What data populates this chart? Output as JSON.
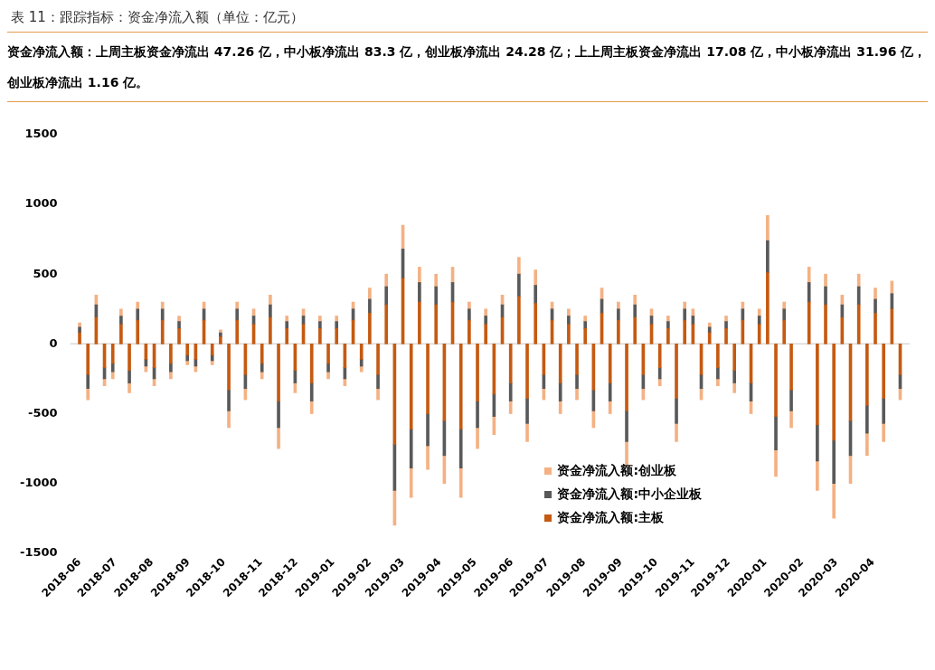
{
  "chart_data": {
    "type": "bar",
    "stacked": true,
    "title": "表 11：跟踪指标：资金净流入额（单位：亿元）",
    "subtitle": "资金净流入额：上周主板资金净流出 47.26 亿，中小板净流出 83.3 亿，创业板净流出 24.28 亿；上上周主板资金净流出 17.08 亿，中小板净流出 31.96 亿，创业板净流出 1.16 亿。",
    "x": [
      "2018-06-01",
      "2018-06-08",
      "2018-06-15",
      "2018-06-22",
      "2018-06-29",
      "2018-07-06",
      "2018-07-13",
      "2018-07-20",
      "2018-07-27",
      "2018-08-03",
      "2018-08-10",
      "2018-08-17",
      "2018-08-24",
      "2018-08-31",
      "2018-09-07",
      "2018-09-14",
      "2018-09-21",
      "2018-09-28",
      "2018-10-05",
      "2018-10-12",
      "2018-10-19",
      "2018-10-26",
      "2018-11-02",
      "2018-11-09",
      "2018-11-16",
      "2018-11-23",
      "2018-11-30",
      "2018-12-07",
      "2018-12-14",
      "2018-12-21",
      "2018-12-28",
      "2019-01-04",
      "2019-01-11",
      "2019-01-18",
      "2019-01-25",
      "2019-02-01",
      "2019-02-08",
      "2019-02-15",
      "2019-02-22",
      "2019-03-01",
      "2019-03-08",
      "2019-03-15",
      "2019-03-22",
      "2019-03-29",
      "2019-04-05",
      "2019-04-12",
      "2019-04-19",
      "2019-04-26",
      "2019-05-03",
      "2019-05-10",
      "2019-05-17",
      "2019-05-24",
      "2019-05-31",
      "2019-06-07",
      "2019-06-14",
      "2019-06-21",
      "2019-06-28",
      "2019-07-05",
      "2019-07-12",
      "2019-07-19",
      "2019-07-26",
      "2019-08-02",
      "2019-08-09",
      "2019-08-16",
      "2019-08-23",
      "2019-08-30",
      "2019-09-06",
      "2019-09-13",
      "2019-09-20",
      "2019-09-27",
      "2019-10-04",
      "2019-10-11",
      "2019-10-18",
      "2019-10-25",
      "2019-11-01",
      "2019-11-08",
      "2019-11-15",
      "2019-11-22",
      "2019-11-29",
      "2019-12-06",
      "2019-12-13",
      "2019-12-20",
      "2019-12-27",
      "2020-01-03",
      "2020-01-10",
      "2020-01-17",
      "2020-01-23",
      "2020-02-07",
      "2020-02-14",
      "2020-02-21",
      "2020-02-28",
      "2020-03-06",
      "2020-03-13",
      "2020-03-20",
      "2020-03-27",
      "2020-04-03",
      "2020-04-10",
      "2020-04-17",
      "2020-04-24"
    ],
    "series": [
      {
        "name": "资金净流入额:主板",
        "color": "#c55a11",
        "values": [
          80,
          -220,
          190,
          -170,
          -140,
          140,
          -190,
          170,
          -110,
          -170,
          170,
          -140,
          110,
          -80,
          -110,
          170,
          -80,
          50,
          -330,
          170,
          -220,
          140,
          -140,
          190,
          -410,
          110,
          -190,
          140,
          -280,
          110,
          -140,
          110,
          -170,
          170,
          -110,
          220,
          -220,
          280,
          -720,
          470,
          -610,
          300,
          -500,
          280,
          -550,
          300,
          -610,
          170,
          -410,
          140,
          -360,
          190,
          -280,
          340,
          -390,
          290,
          -220,
          170,
          -280,
          140,
          -220,
          110,
          -330,
          220,
          -280,
          170,
          -480,
          190,
          -220,
          140,
          -170,
          110,
          -390,
          170,
          140,
          -220,
          80,
          -170,
          110,
          -190,
          170,
          -280,
          140,
          510,
          -520,
          170,
          -330,
          300,
          -580,
          280,
          -690,
          190,
          -550,
          280,
          -440,
          220,
          -390,
          250,
          -220
        ]
      },
      {
        "name": "资金净流入额:中小企业板",
        "color": "#595959",
        "values": [
          40,
          -100,
          90,
          -80,
          -60,
          60,
          -90,
          80,
          -50,
          -80,
          80,
          -60,
          50,
          -40,
          -50,
          80,
          -40,
          30,
          -150,
          80,
          -100,
          60,
          -60,
          90,
          -190,
          50,
          -90,
          60,
          -130,
          50,
          -60,
          50,
          -80,
          80,
          -50,
          100,
          -100,
          130,
          -330,
          210,
          -280,
          140,
          -230,
          130,
          -250,
          140,
          -280,
          80,
          -190,
          60,
          -160,
          90,
          -130,
          160,
          -180,
          130,
          -100,
          80,
          -130,
          60,
          -100,
          50,
          -150,
          100,
          -130,
          80,
          -220,
          90,
          -100,
          60,
          -80,
          50,
          -180,
          80,
          60,
          -100,
          40,
          -80,
          50,
          -90,
          80,
          -130,
          60,
          230,
          -240,
          80,
          -150,
          140,
          -260,
          130,
          -310,
          90,
          -250,
          130,
          -200,
          100,
          -180,
          110,
          -100
        ]
      },
      {
        "name": "资金净流入额:创业板",
        "color": "#f4b183",
        "values": [
          30,
          -80,
          70,
          -50,
          -50,
          50,
          -70,
          50,
          -40,
          -50,
          50,
          -50,
          40,
          -30,
          -40,
          50,
          -30,
          20,
          -120,
          50,
          -80,
          50,
          -50,
          70,
          -150,
          40,
          -70,
          50,
          -90,
          40,
          -50,
          40,
          -50,
          50,
          -40,
          80,
          -80,
          90,
          -250,
          170,
          -210,
          110,
          -170,
          90,
          -200,
          110,
          -210,
          50,
          -150,
          50,
          -130,
          70,
          -90,
          120,
          -130,
          110,
          -80,
          50,
          -90,
          50,
          -80,
          40,
          -120,
          80,
          -90,
          50,
          -170,
          70,
          -80,
          50,
          -50,
          40,
          -130,
          50,
          50,
          -80,
          30,
          -50,
          40,
          -70,
          50,
          -90,
          50,
          180,
          -190,
          50,
          -120,
          110,
          -210,
          90,
          -250,
          70,
          -200,
          90,
          -160,
          80,
          -130,
          90,
          -80
        ]
      }
    ],
    "xlim": [
      "2018-05-24",
      "2020-05-02"
    ],
    "xticks": [
      "2018-06",
      "2018-07",
      "2018-08",
      "2018-09",
      "2018-10",
      "2018-11",
      "2018-12",
      "2019-01",
      "2019-02",
      "2019-03",
      "2019-04",
      "2019-05",
      "2019-06",
      "2019-07",
      "2019-08",
      "2019-09",
      "2019-10",
      "2019-11",
      "2019-12",
      "2020-01",
      "2020-02",
      "2020-03",
      "2020-04"
    ],
    "ylim": [
      -1500,
      1500
    ],
    "yticks": [
      -1500,
      -1000,
      -500,
      0,
      500,
      1000,
      1500
    ],
    "grid": false,
    "legend": "bottom right",
    "ref_lines": [
      {
        "axis": "y",
        "value": 0,
        "color": "#d9d9d9"
      }
    ]
  }
}
